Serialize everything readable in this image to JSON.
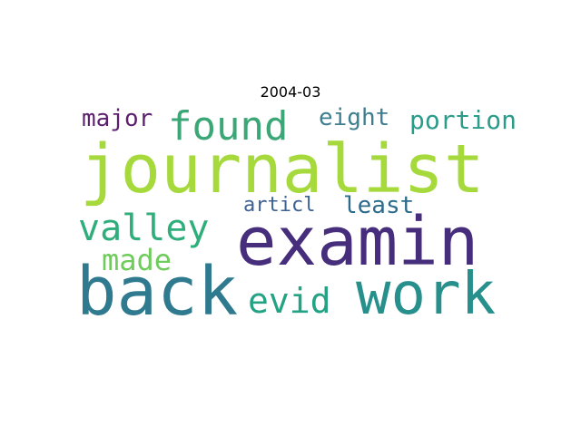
{
  "title": "2004-03",
  "words": [
    {
      "text": "journalist",
      "color": "#a5d93c",
      "weight": 1.0
    },
    {
      "text": "examin",
      "color": "#472e7c",
      "weight": 0.95
    },
    {
      "text": "back",
      "color": "#2f7a8e",
      "weight": 0.95
    },
    {
      "text": "work",
      "color": "#27908d",
      "weight": 0.85
    },
    {
      "text": "found",
      "color": "#3ba776",
      "weight": 0.6
    },
    {
      "text": "valley",
      "color": "#2fae7c",
      "weight": 0.55
    },
    {
      "text": "evid",
      "color": "#23a284",
      "weight": 0.55
    },
    {
      "text": "made",
      "color": "#6ecb5c",
      "weight": 0.45
    },
    {
      "text": "portion",
      "color": "#2b9c8a",
      "weight": 0.4
    },
    {
      "text": "major",
      "color": "#5c1f6e",
      "weight": 0.35
    },
    {
      "text": "eight",
      "color": "#3f7e8f",
      "weight": 0.35
    },
    {
      "text": "least",
      "color": "#2c6b8c",
      "weight": 0.35
    },
    {
      "text": "articl",
      "color": "#3d6191",
      "weight": 0.3
    }
  ]
}
